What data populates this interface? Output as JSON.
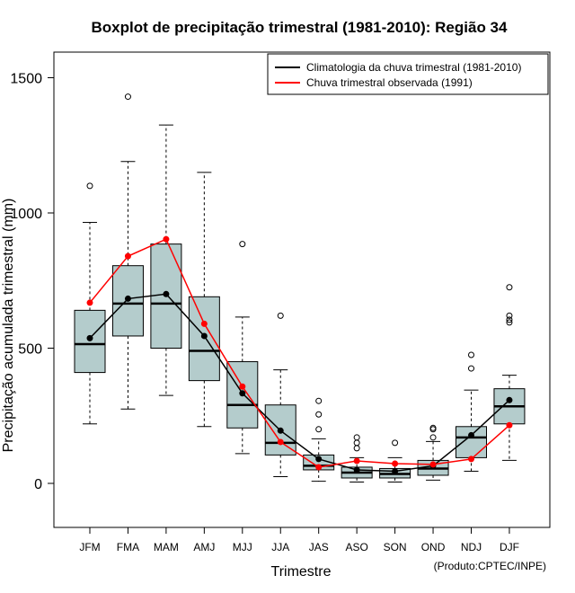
{
  "chart_data": {
    "type": "boxplot",
    "title": "Boxplot de precipitação trimestral (1981-2010): Região 34",
    "xlabel": "Trimestre",
    "ylabel": "Precipitação acumulada trimestral (mm)",
    "credit": "(Produto:CPTEC/INPE)",
    "ylim": [
      -160,
      1600
    ],
    "yticks": [
      0,
      500,
      1000,
      1500
    ],
    "categories": [
      "JFM",
      "FMA",
      "MAM",
      "AMJ",
      "MJJ",
      "JJA",
      "JAS",
      "ASO",
      "SON",
      "OND",
      "NDJ",
      "DJF"
    ],
    "box_color": "#b4cccc",
    "boxes": [
      {
        "min": 220,
        "q1": 410,
        "median": 515,
        "q3": 640,
        "max": 965,
        "outliers": [
          1100
        ]
      },
      {
        "min": 275,
        "q1": 545,
        "median": 665,
        "q3": 805,
        "max": 1190,
        "outliers": [
          1430
        ]
      },
      {
        "min": 325,
        "q1": 500,
        "median": 665,
        "q3": 885,
        "max": 1325,
        "outliers": []
      },
      {
        "min": 210,
        "q1": 380,
        "median": 490,
        "q3": 690,
        "max": 1150,
        "outliers": []
      },
      {
        "min": 110,
        "q1": 205,
        "median": 290,
        "q3": 450,
        "max": 615,
        "outliers": [
          885
        ]
      },
      {
        "min": 25,
        "q1": 105,
        "median": 150,
        "q3": 290,
        "max": 420,
        "outliers": [
          620
        ]
      },
      {
        "min": 8,
        "q1": 50,
        "median": 65,
        "q3": 105,
        "max": 165,
        "outliers": [
          200,
          255,
          305
        ]
      },
      {
        "min": 5,
        "q1": 20,
        "median": 40,
        "q3": 60,
        "max": 95,
        "outliers": [
          130,
          150,
          170
        ]
      },
      {
        "min": 5,
        "q1": 20,
        "median": 35,
        "q3": 55,
        "max": 95,
        "outliers": [
          150
        ]
      },
      {
        "min": 12,
        "q1": 30,
        "median": 55,
        "q3": 85,
        "max": 155,
        "outliers": [
          170,
          200,
          205
        ]
      },
      {
        "min": 45,
        "q1": 95,
        "median": 170,
        "q3": 210,
        "max": 345,
        "outliers": [
          425,
          475
        ]
      },
      {
        "min": 85,
        "q1": 220,
        "median": 285,
        "q3": 350,
        "max": 400,
        "outliers": [
          595,
          605,
          620,
          725
        ]
      }
    ],
    "series": [
      {
        "name": "Climatologia da chuva trimestral (1981-2010)",
        "color": "#000000",
        "values": [
          537,
          683,
          700,
          545,
          333,
          195,
          90,
          50,
          45,
          65,
          178,
          308
        ]
      },
      {
        "name": "Chuva trimestral observada (1991)",
        "color": "#ff0000",
        "values": [
          668,
          840,
          903,
          590,
          358,
          153,
          60,
          83,
          73,
          70,
          90,
          215
        ]
      }
    ],
    "legend_position": "top-right"
  }
}
